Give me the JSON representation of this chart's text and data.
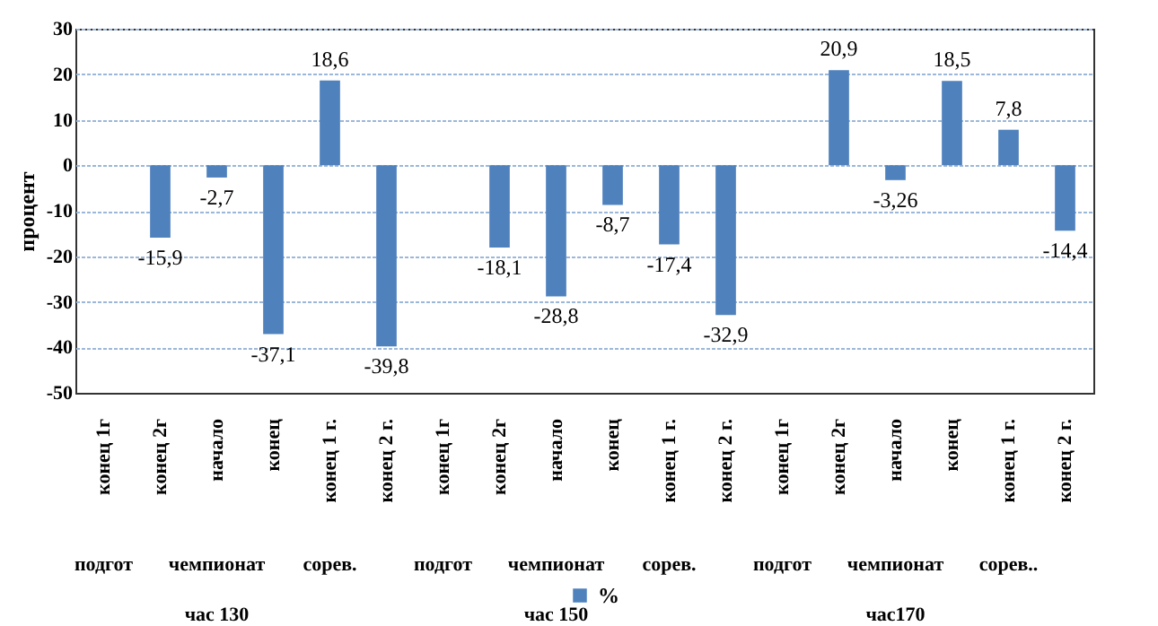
{
  "chart_data": {
    "type": "bar",
    "ylabel": "процент",
    "categories": [
      "конец 1г",
      "конец 2г",
      "начало",
      "конец",
      "конец 1 г.",
      "конец 2 г.",
      "конец 1г",
      "конец 2г",
      "начало",
      "конец",
      "конец 1 г.",
      "конец 2 г.",
      "конец 1г",
      "конец 2г",
      "начало",
      "конец",
      "конец 1 г.",
      "конец 2 г."
    ],
    "series": [
      {
        "name": "%",
        "color": "#4f81bd",
        "values": [
          null,
          -15.9,
          -2.7,
          -37.1,
          18.6,
          -39.8,
          null,
          -18.1,
          -28.8,
          -8.7,
          -17.4,
          -32.9,
          null,
          20.9,
          -3.26,
          18.5,
          7.8,
          -14.4
        ],
        "value_labels": [
          null,
          "-15,9",
          "-2,7",
          "-37,1",
          "18,6",
          "-39,8",
          null,
          "-18,1",
          "-28,8",
          "-8,7",
          "-17,4",
          "-32,9",
          null,
          "20,9",
          "-3,26",
          "18,5",
          "7,8",
          "-14,4"
        ]
      }
    ],
    "annotations": [
      "подгот",
      "чемпионат",
      "сорев.",
      "подгот",
      "чемпионат",
      "сорев.",
      "подгот",
      "чемпионат",
      "сорев..",
      "час 130",
      "час 150",
      "час170"
    ],
    "ylim": [
      -50,
      30
    ],
    "yticks": [
      -50,
      -40,
      -30,
      -20,
      -10,
      0,
      10,
      20,
      30
    ],
    "grid": "y",
    "legend": "bottom"
  }
}
